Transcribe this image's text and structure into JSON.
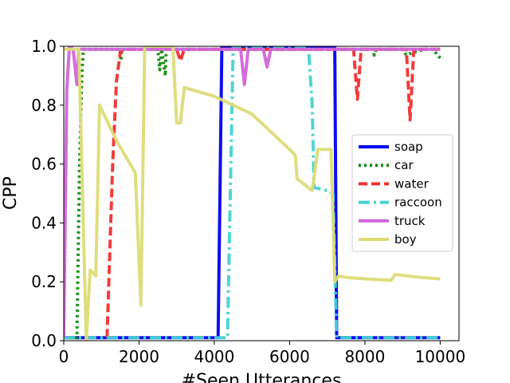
{
  "chart_data": {
    "type": "line",
    "title": "",
    "xlabel": "#Seen Utterances",
    "ylabel": "CPP",
    "xlim": [
      0,
      10500
    ],
    "ylim": [
      0,
      1.0
    ],
    "xticks": [
      0,
      2000,
      4000,
      6000,
      8000,
      10000
    ],
    "yticks": [
      0.0,
      0.2,
      0.4,
      0.6,
      0.8,
      1.0
    ],
    "grid": false,
    "legend_position": "center-right",
    "series": [
      {
        "name": "soap",
        "color": "#0000ee",
        "dash": "solid",
        "points": [
          [
            0,
            0.01
          ],
          [
            4000,
            0.01
          ],
          [
            4100,
            0.01
          ],
          [
            4200,
            1.0
          ],
          [
            7200,
            1.0
          ],
          [
            7250,
            0.01
          ],
          [
            10000,
            0.01
          ]
        ]
      },
      {
        "name": "car",
        "color": "#128c12",
        "dash": "dot",
        "points": [
          [
            0,
            0.01
          ],
          [
            350,
            0.01
          ],
          [
            420,
            0.6
          ],
          [
            480,
            0.9
          ],
          [
            520,
            0.99
          ],
          [
            1500,
            0.99
          ],
          [
            1520,
            0.95
          ],
          [
            1540,
            0.99
          ],
          [
            2500,
            0.99
          ],
          [
            2550,
            0.92
          ],
          [
            2600,
            0.99
          ],
          [
            2700,
            0.9
          ],
          [
            2720,
            0.99
          ],
          [
            8200,
            0.99
          ],
          [
            8250,
            0.97
          ],
          [
            8300,
            0.99
          ],
          [
            9000,
            0.99
          ],
          [
            9100,
            0.97
          ],
          [
            9300,
            0.98
          ],
          [
            9600,
            0.99
          ],
          [
            9800,
            0.99
          ],
          [
            10000,
            0.96
          ]
        ]
      },
      {
        "name": "water",
        "color": "#f03232",
        "dash": "dash",
        "points": [
          [
            1150,
            0.01
          ],
          [
            1300,
            0.6
          ],
          [
            1400,
            0.88
          ],
          [
            1500,
            0.98
          ],
          [
            1600,
            0.99
          ],
          [
            3000,
            0.99
          ],
          [
            3100,
            0.95
          ],
          [
            3200,
            0.99
          ],
          [
            7500,
            0.99
          ],
          [
            7700,
            0.99
          ],
          [
            7800,
            0.82
          ],
          [
            7900,
            0.99
          ],
          [
            8600,
            0.99
          ],
          [
            8800,
            0.99
          ],
          [
            9100,
            0.99
          ],
          [
            9200,
            0.75
          ],
          [
            9300,
            0.99
          ],
          [
            10000,
            0.99
          ]
        ]
      },
      {
        "name": "raccoon",
        "color": "#46d2d2",
        "dash": "dashdot",
        "points": [
          [
            0,
            0.01
          ],
          [
            4350,
            0.01
          ],
          [
            4500,
            1.0
          ],
          [
            6500,
            1.0
          ],
          [
            6600,
            0.8
          ],
          [
            6650,
            0.52
          ],
          [
            7000,
            0.51
          ],
          [
            7150,
            0.5
          ],
          [
            7250,
            0.01
          ],
          [
            10000,
            0.01
          ]
        ]
      },
      {
        "name": "truck",
        "color": "#d264dc",
        "dash": "solid",
        "points": [
          [
            0,
            0.01
          ],
          [
            80,
            0.85
          ],
          [
            150,
            1.0
          ],
          [
            250,
            0.99
          ],
          [
            350,
            0.87
          ],
          [
            400,
            0.99
          ],
          [
            4700,
            0.99
          ],
          [
            4800,
            0.87
          ],
          [
            4900,
            0.99
          ],
          [
            5300,
            0.99
          ],
          [
            5400,
            0.93
          ],
          [
            5500,
            0.99
          ],
          [
            7300,
            0.99
          ],
          [
            10000,
            0.99
          ]
        ]
      },
      {
        "name": "boy",
        "color": "#dcdc78",
        "dash": "solid",
        "points": [
          [
            0,
            0.99
          ],
          [
            200,
            0.99
          ],
          [
            400,
            0.99
          ],
          [
            600,
            0.0
          ],
          [
            700,
            0.24
          ],
          [
            850,
            0.22
          ],
          [
            950,
            0.8
          ],
          [
            1400,
            0.68
          ],
          [
            1900,
            0.57
          ],
          [
            2050,
            0.12
          ],
          [
            2150,
            1.0
          ],
          [
            2900,
            1.0
          ],
          [
            3000,
            0.74
          ],
          [
            3100,
            0.74
          ],
          [
            3200,
            0.86
          ],
          [
            4000,
            0.83
          ],
          [
            5000,
            0.77
          ],
          [
            6000,
            0.65
          ],
          [
            6150,
            0.63
          ],
          [
            6200,
            0.55
          ],
          [
            6600,
            0.51
          ],
          [
            6750,
            0.65
          ],
          [
            7100,
            0.65
          ],
          [
            7200,
            0.2
          ],
          [
            7300,
            0.22
          ],
          [
            7500,
            0.215
          ],
          [
            8000,
            0.21
          ],
          [
            8700,
            0.205
          ],
          [
            8800,
            0.225
          ],
          [
            9500,
            0.215
          ],
          [
            10000,
            0.21
          ]
        ]
      }
    ]
  }
}
